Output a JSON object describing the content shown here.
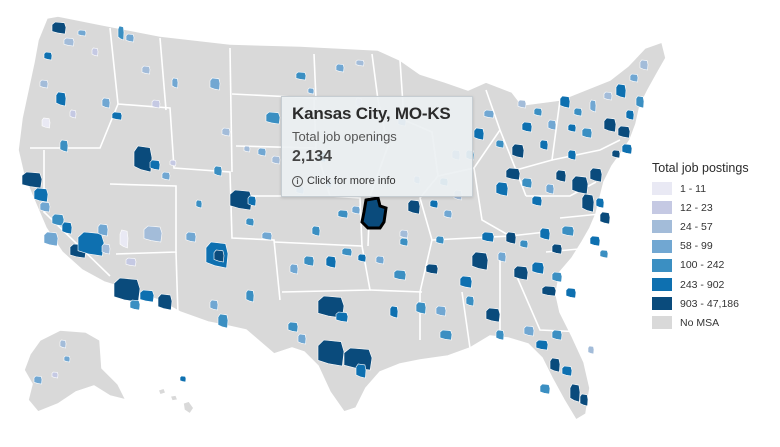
{
  "tooltip": {
    "title": "Kansas City, MO-KS",
    "label": "Total job openings",
    "value": "2,134",
    "more": "Click for more info",
    "info_icon": "info-circle-icon"
  },
  "legend": {
    "title": "Total job postings",
    "items": [
      {
        "label": "1 - 11",
        "color": "#e9e9f4"
      },
      {
        "label": "12 - 23",
        "color": "#c5c9e3"
      },
      {
        "label": "24 - 57",
        "color": "#a3bcd9"
      },
      {
        "label": "58 - 99",
        "color": "#71a7d2"
      },
      {
        "label": "100 - 242",
        "color": "#3b8fc2"
      },
      {
        "label": "243 - 902",
        "color": "#0e70b0"
      },
      {
        "label": "903 - 47,186",
        "color": "#0a4b7c"
      },
      {
        "label": "No MSA",
        "color": "#d9d9d9"
      }
    ]
  },
  "map": {
    "selected_msa": "Kansas City, MO-KS",
    "base_color": "#d9d9d9"
  }
}
